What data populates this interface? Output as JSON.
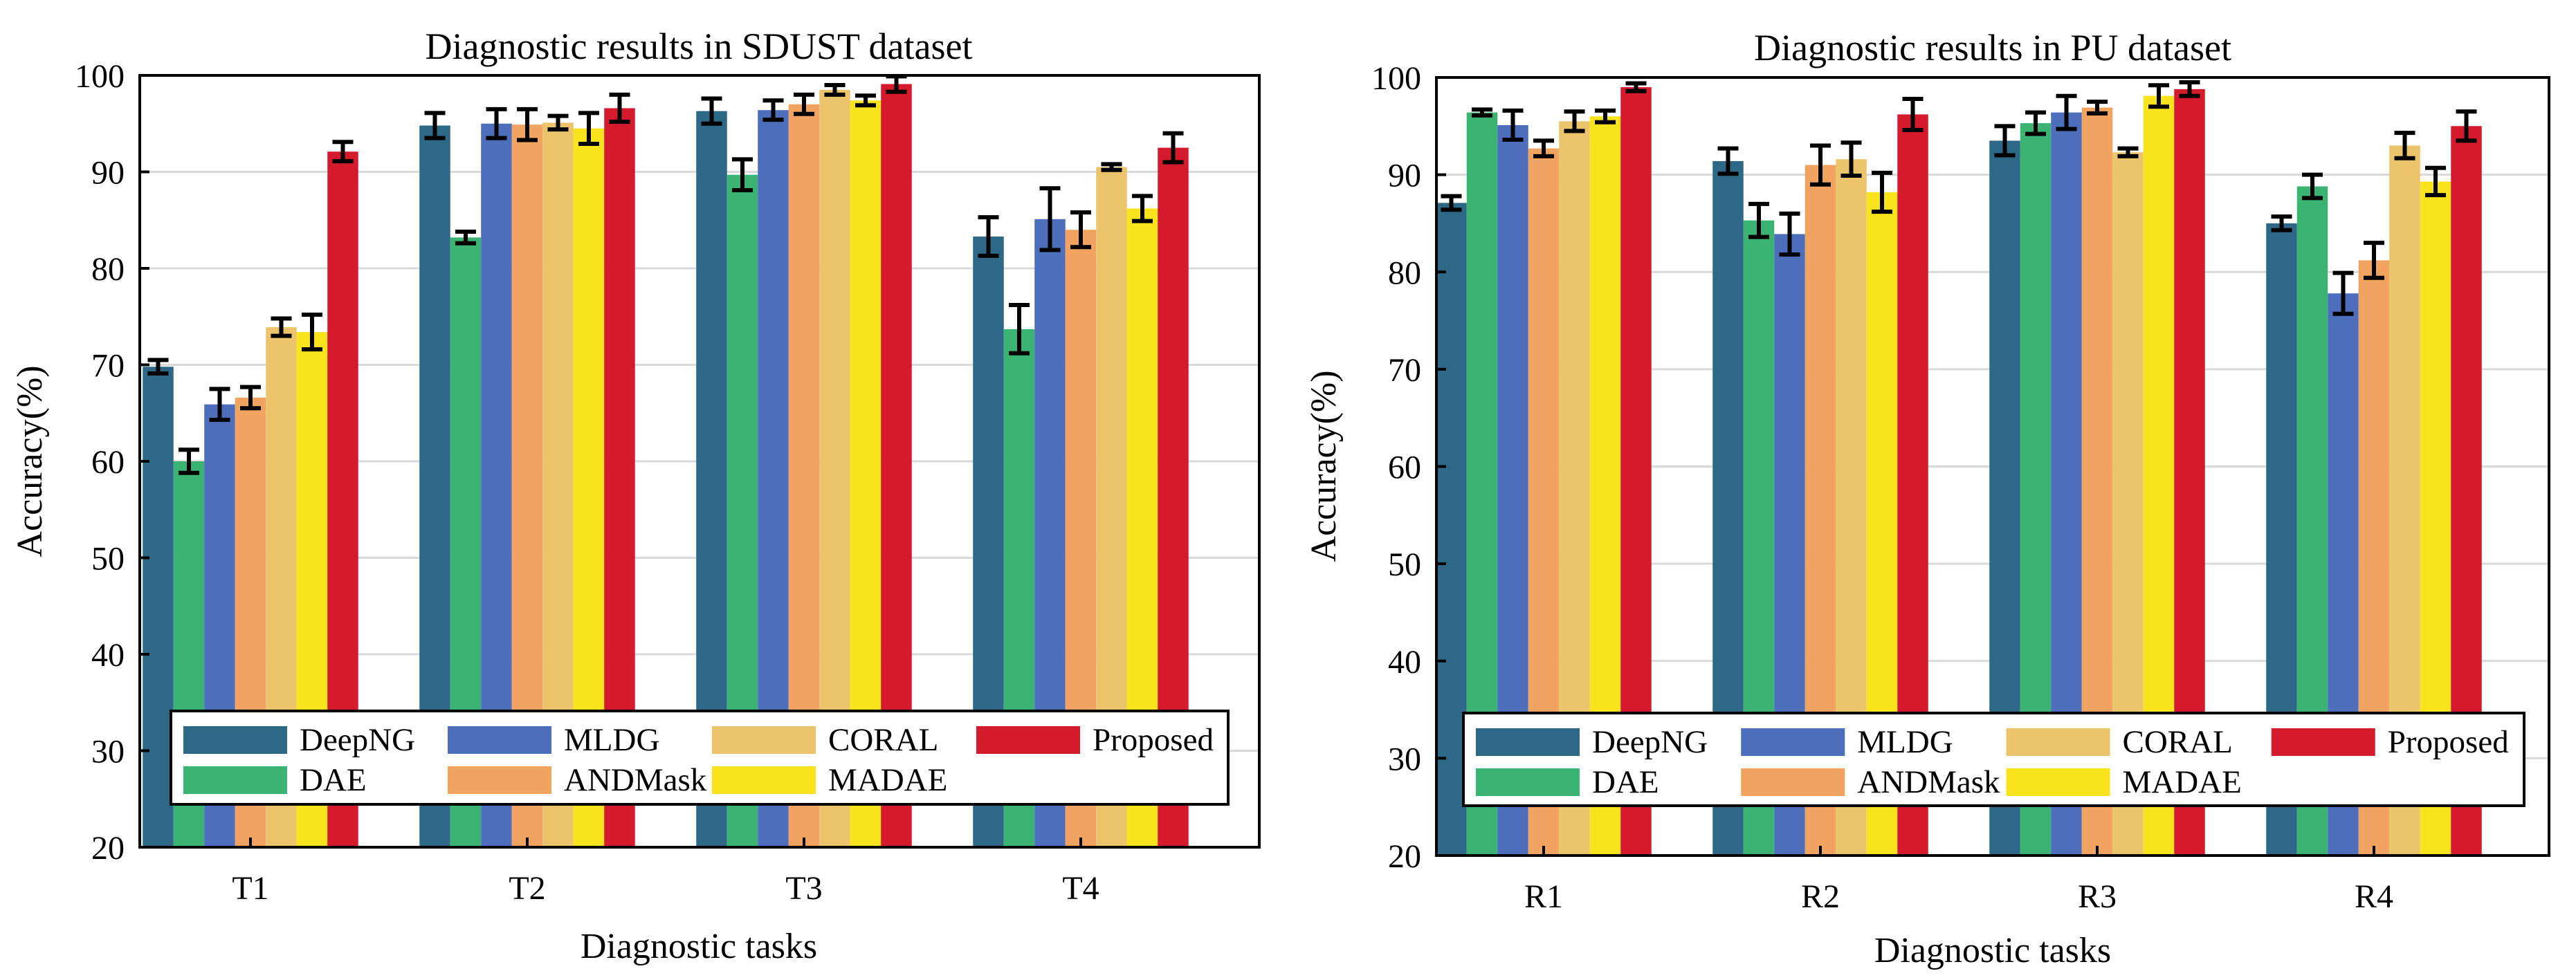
{
  "colors": {
    "DeepNG": "#2e6887",
    "DAE": "#3bb372",
    "MLDG": "#4d6fbb",
    "ANDMask": "#f1a460",
    "CORAL": "#ecc46b",
    "MADAE": "#f8e31c",
    "Proposed": "#d41b2d"
  },
  "chart_data": [
    {
      "type": "bar",
      "title": "Diagnostic results in SDUST dataset",
      "xlabel": "Diagnostic tasks",
      "ylabel": "Accuracy(%)",
      "ylim": [
        20,
        100
      ],
      "yticks": [
        "20",
        "30",
        "40",
        "50",
        "60",
        "70",
        "80",
        "90",
        "100"
      ],
      "grid": true,
      "categories": [
        "T1",
        "T2",
        "T3",
        "T4"
      ],
      "series": [
        {
          "name": "DeepNG",
          "values": [
            69.8,
            94.8,
            96.3,
            83.3
          ],
          "errors": [
            0.7,
            1.3,
            1.3,
            2.0
          ]
        },
        {
          "name": "DAE",
          "values": [
            60.0,
            83.2,
            89.7,
            73.7
          ],
          "errors": [
            1.2,
            0.6,
            1.6,
            2.5
          ]
        },
        {
          "name": "MLDG",
          "values": [
            65.9,
            95.0,
            96.4,
            85.1
          ],
          "errors": [
            1.6,
            1.5,
            1.0,
            3.2
          ]
        },
        {
          "name": "ANDMask",
          "values": [
            66.6,
            94.9,
            97.0,
            84.0
          ],
          "errors": [
            1.1,
            1.6,
            1.0,
            1.8
          ]
        },
        {
          "name": "CORAL",
          "values": [
            73.9,
            95.1,
            98.5,
            90.5
          ],
          "errors": [
            0.9,
            0.7,
            0.5,
            0.3
          ]
        },
        {
          "name": "MADAE",
          "values": [
            73.4,
            94.5,
            97.4,
            86.2
          ],
          "errors": [
            1.8,
            1.6,
            0.5,
            1.3
          ]
        },
        {
          "name": "Proposed",
          "values": [
            92.1,
            96.6,
            99.1,
            92.5
          ],
          "errors": [
            1.0,
            1.4,
            0.8,
            1.5
          ]
        }
      ],
      "legend": {
        "placement": "lower-center",
        "entries": [
          "DeepNG",
          "MLDG",
          "CORAL",
          "Proposed",
          "DAE",
          "ANDMask",
          "MADAE"
        ]
      }
    },
    {
      "type": "bar",
      "title": "Diagnostic results in PU dataset",
      "xlabel": "Diagnostic tasks",
      "ylabel": "Accuracy(%)",
      "ylim": [
        20,
        100
      ],
      "yticks": [
        "20",
        "30",
        "40",
        "50",
        "60",
        "70",
        "80",
        "90",
        "100"
      ],
      "grid": true,
      "categories": [
        "R1",
        "R2",
        "R3",
        "R4"
      ],
      "series": [
        {
          "name": "DeepNG",
          "values": [
            87.1,
            91.4,
            93.5,
            85.0
          ],
          "errors": [
            0.7,
            1.3,
            1.5,
            0.7
          ]
        },
        {
          "name": "DAE",
          "values": [
            96.4,
            85.3,
            95.3,
            88.8
          ],
          "errors": [
            0.3,
            1.7,
            1.1,
            1.2
          ]
        },
        {
          "name": "MLDG",
          "values": [
            95.1,
            83.9,
            96.4,
            77.8
          ],
          "errors": [
            1.5,
            2.1,
            1.7,
            2.1
          ]
        },
        {
          "name": "ANDMask",
          "values": [
            92.7,
            91.0,
            96.9,
            81.2
          ],
          "errors": [
            0.8,
            2.0,
            0.6,
            1.8
          ]
        },
        {
          "name": "CORAL",
          "values": [
            95.5,
            91.6,
            92.3,
            93.0
          ],
          "errors": [
            1.0,
            1.7,
            0.4,
            1.3
          ]
        },
        {
          "name": "MADAE",
          "values": [
            96.0,
            88.2,
            98.1,
            89.3
          ],
          "errors": [
            0.6,
            2.0,
            1.1,
            1.4
          ]
        },
        {
          "name": "Proposed",
          "values": [
            99.0,
            96.2,
            98.8,
            95.0
          ],
          "errors": [
            0.4,
            1.6,
            0.7,
            1.5
          ]
        }
      ],
      "legend": {
        "placement": "lower-center",
        "entries": [
          "DeepNG",
          "MLDG",
          "CORAL",
          "Proposed",
          "DAE",
          "ANDMask",
          "MADAE"
        ]
      }
    }
  ]
}
